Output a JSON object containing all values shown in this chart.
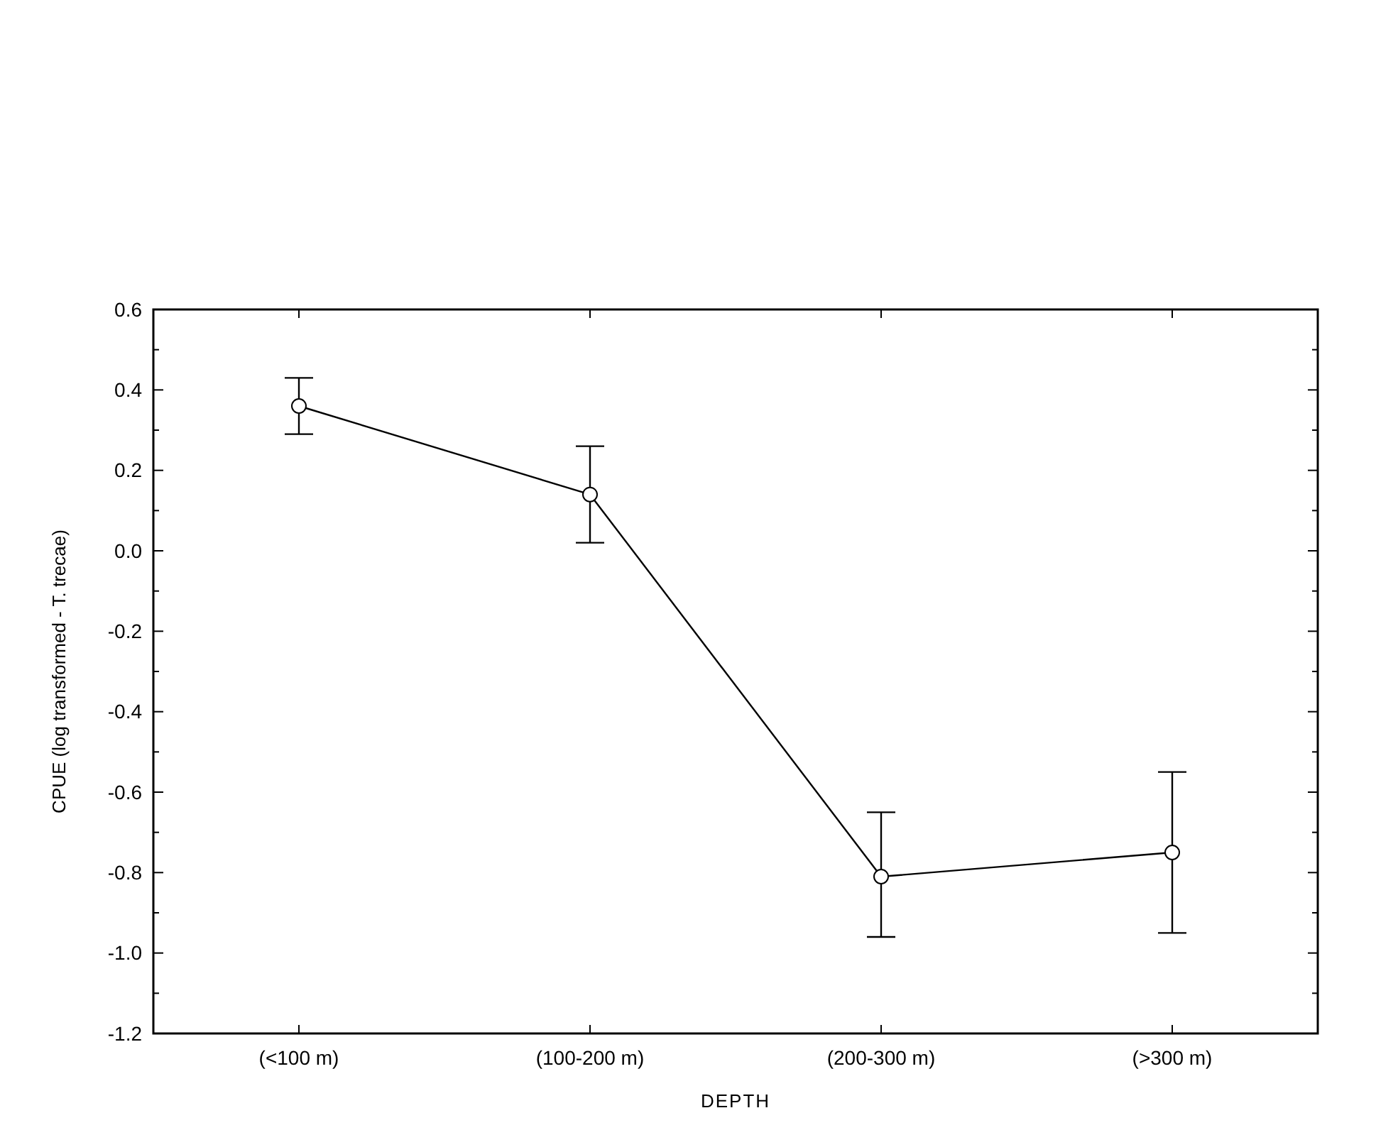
{
  "chart_data": {
    "type": "line",
    "xlabel": "DEPTH",
    "ylabel": "CPUE (log transformed - T. trecae)",
    "categories": [
      "(<100 m)",
      "(100-200 m)",
      "(200-300 m)",
      "(>300 m)"
    ],
    "series": [
      {
        "color": "#000000",
        "values": [
          0.36,
          0.14,
          -0.81,
          -0.75
        ],
        "errors": [
          [
            0.29,
            0.43
          ],
          [
            0.02,
            0.26
          ],
          [
            -0.96,
            -0.65
          ],
          [
            -0.95,
            -0.55
          ]
        ]
      }
    ],
    "ylim": [
      -1.2,
      0.6
    ],
    "yticks": [
      {
        "value": 0.6,
        "label": "0.6"
      },
      {
        "value": 0.4,
        "label": "0.4"
      },
      {
        "value": 0.2,
        "label": "0.2"
      },
      {
        "value": 0,
        "label": "0.0"
      },
      {
        "value": -0.2,
        "label": "-0.2"
      },
      {
        "value": -0.4,
        "label": "-0.4"
      },
      {
        "value": -0.6,
        "label": "-0.6"
      },
      {
        "value": -0.8,
        "label": "-0.8"
      },
      {
        "value": -1,
        "label": "-1.0"
      },
      {
        "value": -1.2,
        "label": "-1.2"
      }
    ],
    "marker": "circle",
    "line_style": "solid"
  }
}
